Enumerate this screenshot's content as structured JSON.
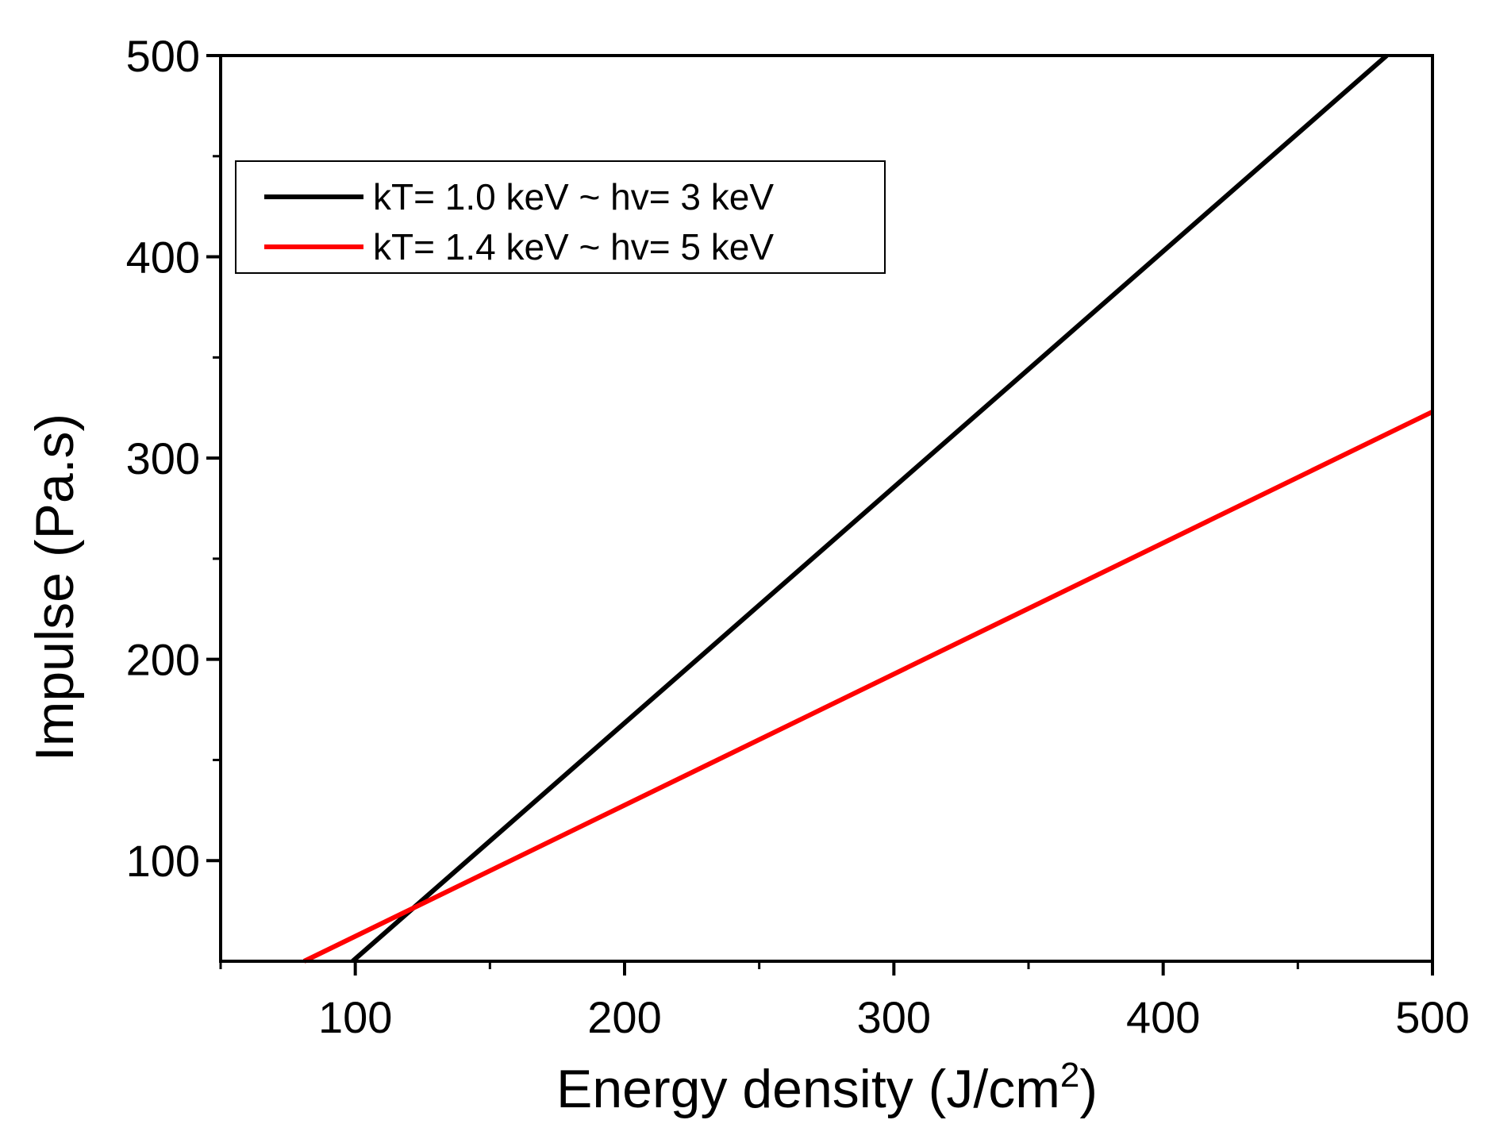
{
  "chart_data": {
    "type": "line",
    "xlabel": "Energy density (J/cm",
    "xlabel_sup": "2",
    "xlabel_close": ")",
    "ylabel": "Impulse (Pa.s)",
    "xlim": [
      50,
      500
    ],
    "ylim": [
      50,
      500
    ],
    "x_ticks": [
      100,
      200,
      300,
      400,
      500
    ],
    "y_ticks": [
      100,
      200,
      300,
      400,
      500
    ],
    "x_minor_ticks": [
      50,
      150,
      250,
      350,
      450
    ],
    "y_minor_ticks": [
      150,
      250,
      350,
      450
    ],
    "grid": false,
    "legend_position": "top-left",
    "series": [
      {
        "name": "kT= 1.0  keV ~ hv= 3  keV",
        "color": "#000000",
        "x": [
          99,
          483
        ],
        "y": [
          50,
          500
        ]
      },
      {
        "name": "kT= 1.4  keV ~ hv= 5  keV",
        "color": "#ff0000",
        "x": [
          81,
          500
        ],
        "y": [
          50,
          323
        ]
      }
    ]
  }
}
